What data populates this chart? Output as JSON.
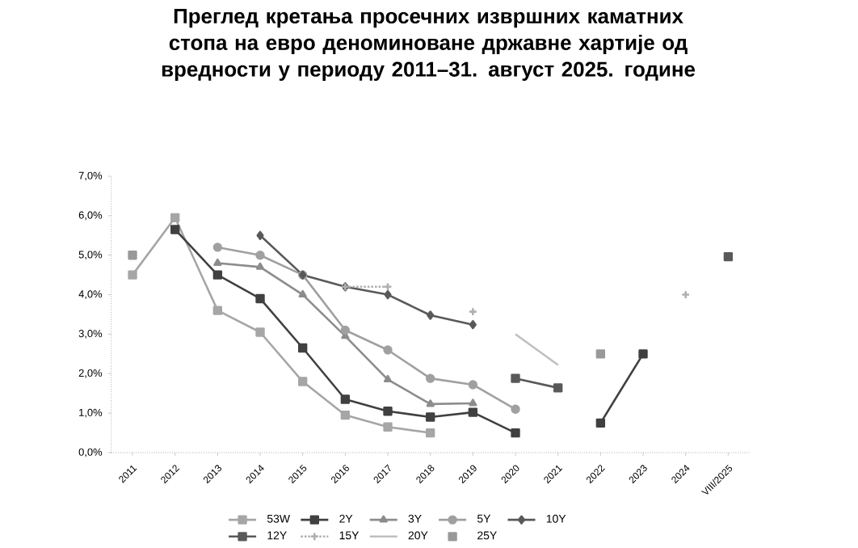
{
  "chart_data": {
    "type": "line",
    "title": "Преглед кретања просечних извршних каматних стопа на евро деноминоване државне хартије од вредности у периоду 2011–31. август 2025. године",
    "categories": [
      "2011",
      "2012",
      "2013",
      "2014",
      "2015",
      "2016",
      "2017",
      "2018",
      "2019",
      "2020",
      "2021",
      "2022",
      "2023",
      "2024",
      "VIII/2025"
    ],
    "ylim": [
      0,
      7
    ],
    "yticks": [
      {
        "value": 0,
        "label": "0,0%"
      },
      {
        "value": 1,
        "label": "1,0%"
      },
      {
        "value": 2,
        "label": "2,0%"
      },
      {
        "value": 3,
        "label": "3,0%"
      },
      {
        "value": 4,
        "label": "4,0%"
      },
      {
        "value": 5,
        "label": "5,0%"
      },
      {
        "value": 6,
        "label": "6,0%"
      },
      {
        "value": 7,
        "label": "7,0%"
      }
    ],
    "legend": "bottom",
    "series": [
      {
        "name": "53W",
        "color": "#a6a6a6",
        "marker": "square",
        "line_style": "solid",
        "values": [
          4.5,
          5.95,
          3.6,
          3.05,
          1.8,
          0.95,
          0.65,
          0.5,
          null,
          null,
          null,
          null,
          null,
          null,
          null
        ]
      },
      {
        "name": "2Y",
        "color": "#404040",
        "marker": "square",
        "line_style": "solid",
        "values": [
          null,
          5.65,
          4.5,
          3.9,
          2.65,
          1.35,
          1.05,
          0.9,
          1.02,
          0.5,
          null,
          0.75,
          2.5,
          null,
          null
        ]
      },
      {
        "name": "3Y",
        "color": "#8c8c8c",
        "marker": "triangle",
        "line_style": "solid",
        "values": [
          null,
          null,
          4.8,
          4.7,
          4.0,
          2.95,
          1.85,
          1.23,
          1.25,
          null,
          null,
          null,
          null,
          null,
          null
        ]
      },
      {
        "name": "5Y",
        "color": "#a0a0a0",
        "marker": "circle",
        "line_style": "solid",
        "values": [
          null,
          null,
          5.2,
          5.0,
          4.5,
          3.1,
          2.6,
          1.88,
          1.72,
          1.1,
          null,
          null,
          null,
          null,
          null
        ]
      },
      {
        "name": "10Y",
        "color": "#595959",
        "marker": "diamond",
        "line_style": "solid",
        "values": [
          null,
          null,
          null,
          5.5,
          4.5,
          4.2,
          4.0,
          3.48,
          3.24,
          null,
          null,
          null,
          null,
          null,
          null
        ]
      },
      {
        "name": "12Y",
        "color": "#595959",
        "marker": "square",
        "line_style": "solid",
        "values": [
          null,
          null,
          null,
          null,
          null,
          null,
          null,
          null,
          null,
          1.88,
          1.64,
          null,
          null,
          null,
          4.96
        ]
      },
      {
        "name": "15Y",
        "color": "#b0b0b0",
        "marker": "cross",
        "line_style": "dotted",
        "values": [
          null,
          null,
          null,
          null,
          null,
          4.2,
          4.2,
          null,
          3.57,
          null,
          null,
          null,
          null,
          4.0,
          null
        ]
      },
      {
        "name": "20Y",
        "color": "#bfbfbf",
        "marker": "none",
        "line_style": "solid",
        "values": [
          null,
          null,
          null,
          null,
          null,
          null,
          null,
          null,
          null,
          3.0,
          2.22,
          null,
          null,
          null,
          null
        ]
      },
      {
        "name": "25Y",
        "type": "scatter",
        "color": "#999999",
        "marker": "square",
        "values": [
          5.0,
          null,
          null,
          null,
          null,
          null,
          null,
          null,
          null,
          null,
          null,
          2.5,
          null,
          null,
          null
        ]
      }
    ]
  }
}
